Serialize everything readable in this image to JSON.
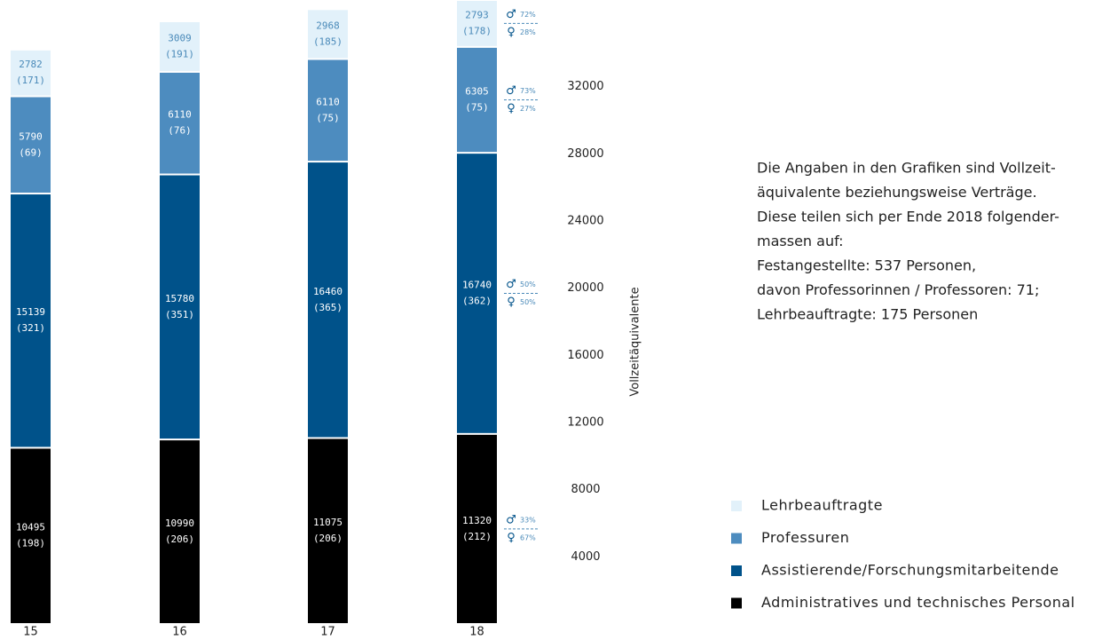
{
  "chart_data": {
    "type": "stacked_bar",
    "categories": [
      "15",
      "16",
      "17",
      "18"
    ],
    "y_label": "Vollzeitäquivalente",
    "ylim": [
      0,
      37000
    ],
    "yticks": [
      4000,
      8000,
      12000,
      16000,
      20000,
      24000,
      28000,
      32000
    ],
    "grid": false,
    "male_symbol": "♂",
    "female_symbol": "♀",
    "series": [
      {
        "name": "Administratives und technisches Personal",
        "color": "#000000",
        "label_color": "#ffffff",
        "values": [
          10495,
          10990,
          11075,
          11320
        ],
        "counts": [
          "(198)",
          "(206)",
          "(206)",
          "(212)"
        ],
        "male": 33,
        "male_label": "33%",
        "female": 67,
        "female_label": "67%"
      },
      {
        "name": "Assistierende/Forschungsmitarbeitende",
        "color": "#00528a",
        "label_color": "#ffffff",
        "values": [
          15139,
          15780,
          16460,
          16740
        ],
        "counts": [
          "(321)",
          "(351)",
          "(365)",
          "(362)"
        ],
        "male": 50,
        "male_label": "50%",
        "female": 50,
        "female_label": "50%"
      },
      {
        "name": "Professuren",
        "color": "#4d8cbf",
        "label_color": "#ffffff",
        "values": [
          5790,
          6110,
          6110,
          6305
        ],
        "counts": [
          "(69)",
          "(76)",
          "(75)",
          "(75)"
        ],
        "male": 73,
        "male_label": "73%",
        "female": 27,
        "female_label": "27%"
      },
      {
        "name": "Lehrbeauftragte",
        "color": "#e2f1fa",
        "label_color": "#4a8ab9",
        "values": [
          2782,
          3009,
          2968,
          2793
        ],
        "counts": [
          "(171)",
          "(191)",
          "(185)",
          "(178)"
        ],
        "male": 72,
        "male_label": "72%",
        "female": 28,
        "female_label": "28%"
      }
    ],
    "note": [
      "Die Angaben in den Grafiken sind Vollzeit-",
      "äquivalente beziehungsweise Verträge.",
      "Diese teilen sich per Ende 2018 folgender-",
      "massen auf:",
      "Festangestellte: 537 Personen,",
      "davon Professorinnen / Professoren: 71;",
      "Lehrbeauftragte: 175 Personen"
    ]
  }
}
